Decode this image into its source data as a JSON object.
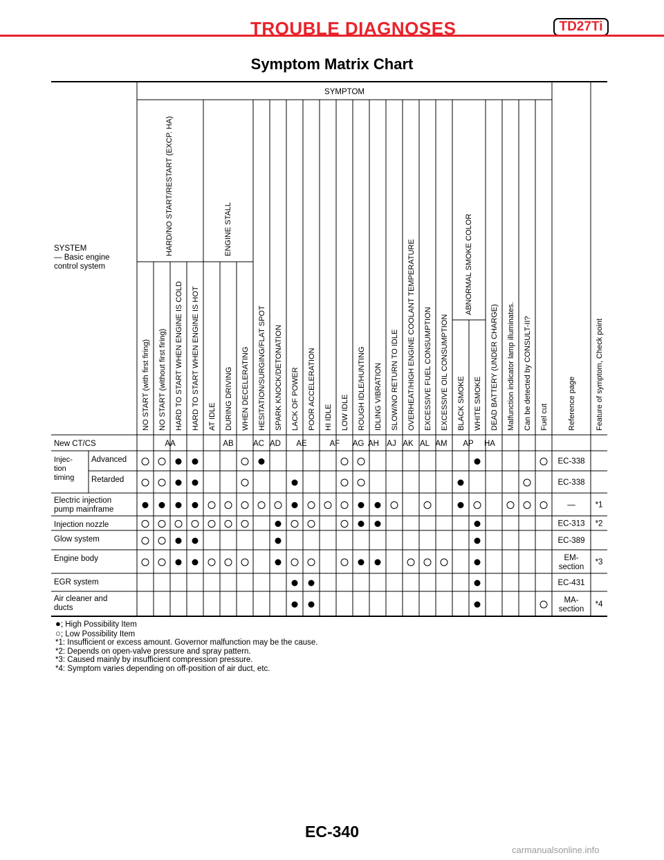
{
  "header": {
    "section": "TROUBLE DIAGNOSES",
    "model": "TD27Ti",
    "accent_color": "#e8232b"
  },
  "page_title": "Symptom Matrix Chart",
  "table": {
    "corner_label": [
      "SYSTEM",
      "— Basic engine",
      "control system"
    ],
    "group_header": "SYMPTOM",
    "groups": {
      "hard_start": "HARD/NO START/RESTART (EXCP. HA)",
      "engine_stall": "ENGINE STALL",
      "abnormal_smoke": "ABNORMAL SMOKE COLOR"
    },
    "columns": [
      "NO START (with first firing)",
      "NO START (without first firing)",
      "HARD TO START WHEN ENGINE IS COLD",
      "HARD TO START WHEN ENGINE IS HOT",
      "AT IDLE",
      "DURING DRIVING",
      "WHEN DECELERATING",
      "HESITATION/SURGING/FLAT SPOT",
      "SPARK KNOCK/DETONATION",
      "LACK OF POWER",
      "POOR ACCELERATION",
      "HI IDLE",
      "LOW IDLE",
      "ROUGH IDLE/HUNTING",
      "IDLING VIBRATION",
      "SLOW/NO RETURN TO IDLE",
      "OVERHEAT/HIGH ENGINE COOLANT TEMPERATURE",
      "EXCESSIVE FUEL CONSUMPTION",
      "EXCESSIVE OIL CONSUMPTION",
      "BLACK SMOKE",
      "WHITE SMOKE",
      "DEAD BATTERY (UNDER CHARGE)",
      "Malfunction indicator lamp illuminates.",
      "Can be detected by CONSULT-II?",
      "Fuel cut",
      "Reference page",
      "Feature of symptom, Check point"
    ],
    "ctcs_label": "New CT/CS",
    "ctcs_codes": [
      "AA",
      "AB",
      "AC",
      "AD",
      "AE",
      "AF",
      "AG",
      "AH",
      "AJ",
      "AK",
      "AL",
      "AM",
      "AP",
      "HA"
    ],
    "injection_timing_label": [
      "Injec-",
      "tion",
      "timing"
    ],
    "rows": [
      {
        "system": [
          "Advanced"
        ],
        "marks": "LLHH..LH....LL......H...L",
        "ref": [
          "EC-338"
        ],
        "feature": ""
      },
      {
        "system": [
          "Retarded"
        ],
        "marks": "LLHH..L..H..LL.....H...L.",
        "ref": [
          "EC-338"
        ],
        "feature": ""
      },
      {
        "system": [
          "Electric injection",
          "pump mainframe"
        ],
        "marks": "HHHHLLLLLHLLLHHL.L.HL.LLL",
        "ref": [
          "—"
        ],
        "feature": "*1"
      },
      {
        "system": [
          "Injection nozzle"
        ],
        "marks": "LLLLLLL.HLL.LHH.....H....",
        "ref": [
          "EC-313"
        ],
        "feature": "*2"
      },
      {
        "system": [
          "Glow system"
        ],
        "marks": "LLHH....H...........H....",
        "ref": [
          "EC-389"
        ],
        "feature": ""
      },
      {
        "system": [
          "Engine body"
        ],
        "marks": "LLHHLLL.HLL.LHH.LLL.H....",
        "ref": [
          "EM-",
          "section"
        ],
        "feature": "*3"
      },
      {
        "system": [
          "EGR system"
        ],
        "marks": ".........HH.........H....",
        "ref": [
          "EC-431"
        ],
        "feature": ""
      },
      {
        "system": [
          "Air cleaner and",
          "ducts"
        ],
        "marks": ".........HH.........H...L",
        "ref": [
          "MA-",
          "section"
        ],
        "feature": "*4"
      }
    ]
  },
  "legend": {
    "high": "; High Possibility Item",
    "low": "; Low Possibility Item",
    "notes": [
      "*1: Insufficient or excess amount. Governor malfunction may be the cause.",
      "*2: Depends on open-valve pressure and spray pattern.",
      "*3: Caused mainly by insufficient compression pressure.",
      "*4: Symptom varies depending on off-position of air duct, etc."
    ]
  },
  "footer": {
    "page_code": "EC-340",
    "watermark": "carmanualsonline.info"
  }
}
